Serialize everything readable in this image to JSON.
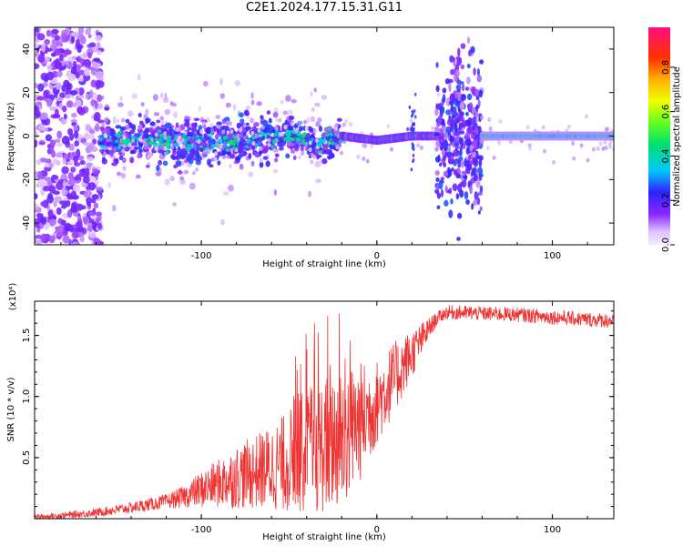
{
  "title": "C2E1.2024.177.15.31.G11",
  "colors": {
    "trace": "#ee3333",
    "grid_frame": "#000000"
  },
  "chart_data": [
    {
      "type": "heatmap",
      "title": "C2E1.2024.177.15.31.G11",
      "xlabel": "Height of straight line (km)",
      "ylabel": "Frequency (Hz)",
      "xlim": [
        -195,
        135
      ],
      "ylim": [
        -50,
        50
      ],
      "x_ticks": [
        -100,
        0,
        100
      ],
      "x_tick_labels": [
        "-100",
        "0",
        "100"
      ],
      "y_ticks": [
        -40,
        -20,
        0,
        20,
        40
      ],
      "y_tick_labels": [
        "-40",
        "-20",
        "0",
        "20",
        "40"
      ],
      "colorbar": {
        "label": "Normalized spectral amplitude",
        "range": [
          0,
          0.98
        ],
        "ticks": [
          0.0,
          0.2,
          0.4,
          0.6,
          0.8
        ],
        "tick_labels": [
          "0.0",
          "0.2",
          "0.4",
          "0.6",
          "0.8"
        ],
        "colormap": "rainbow (white-violet-blue-cyan-green-yellow-orange-red-magenta)"
      },
      "ridge_center_hz": [
        {
          "x": -155,
          "y": -2
        },
        {
          "x": -130,
          "y": -2
        },
        {
          "x": -100,
          "y": -3
        },
        {
          "x": -75,
          "y": -2
        },
        {
          "x": -50,
          "y": 0
        },
        {
          "x": -35,
          "y": -4
        },
        {
          "x": -20,
          "y": 0
        },
        {
          "x": 0,
          "y": -2
        },
        {
          "x": 20,
          "y": 0
        },
        {
          "x": 35,
          "y": 0
        },
        {
          "x": 60,
          "y": 0
        },
        {
          "x": 100,
          "y": 0
        },
        {
          "x": 135,
          "y": 0
        }
      ]
    },
    {
      "type": "line",
      "xlabel": "Height of straight line (km)",
      "ylabel": "SNR (10 * v/v)",
      "yscale_label": "(x10⁴)",
      "xlim": [
        -195,
        135
      ],
      "ylim": [
        0,
        17800
      ],
      "x_ticks": [
        -100,
        0,
        100
      ],
      "x_tick_labels": [
        "-100",
        "0",
        "100"
      ],
      "y_ticks": [
        5000,
        10000,
        15000
      ],
      "y_tick_labels": [
        "0.5",
        "1.0",
        "1.5"
      ],
      "series": [
        {
          "x": [
            -195,
            -180,
            -160,
            -140,
            -120,
            -110,
            -100,
            -90,
            -80,
            -70,
            -60,
            -50,
            -40,
            -30,
            -20,
            -10,
            0,
            10,
            20,
            30,
            35,
            40,
            60,
            80,
            100,
            120,
            135
          ],
          "mean": [
            150,
            250,
            500,
            900,
            1400,
            1800,
            2400,
            2900,
            3400,
            3800,
            4200,
            4700,
            5300,
            6000,
            6700,
            7800,
            9500,
            11500,
            13500,
            15600,
            16500,
            16900,
            16800,
            16700,
            16500,
            16300,
            16200
          ],
          "spread": [
            200,
            250,
            350,
            450,
            600,
            900,
            1500,
            2000,
            2600,
            3000,
            3500,
            4200,
            5000,
            5600,
            6000,
            5000,
            3500,
            3000,
            2000,
            900,
            500,
            600,
            600,
            600,
            600,
            600,
            600
          ]
        }
      ]
    }
  ]
}
